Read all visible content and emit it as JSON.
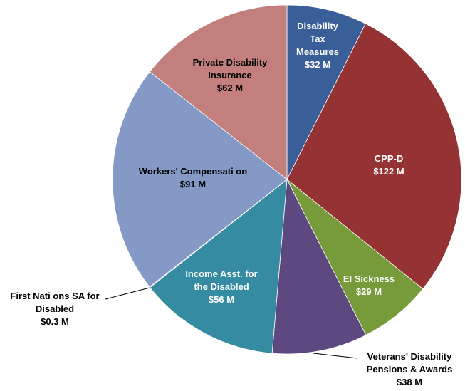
{
  "chart_data": {
    "type": "pie",
    "title": "",
    "start_angle_deg": 90,
    "direction": "clockwise",
    "slices": [
      {
        "lines": [
          "Disability",
          "Tax",
          "Measures",
          "$32 M"
        ],
        "value": 32,
        "color": "#3a5f98",
        "text_color": "#ffffff"
      },
      {
        "lines": [
          "CPP-D",
          "$122 M"
        ],
        "value": 122,
        "color": "#953334",
        "text_color": "#ffffff"
      },
      {
        "lines": [
          "EI Sickness",
          "$29 M"
        ],
        "value": 29,
        "color": "#779a3a",
        "text_color": "#ffffff"
      },
      {
        "lines": [
          "Veterans' Disability",
          "Pensions & Awards",
          "$38 M"
        ],
        "value": 38,
        "color": "#5d4880",
        "text_color": "#000000"
      },
      {
        "lines": [
          "Income Asst. for",
          "the Disabled",
          "$56 M"
        ],
        "value": 56,
        "color": "#358ca2",
        "text_color": "#ffffff"
      },
      {
        "lines": [
          "First Nati  ons SA for",
          "Disabled",
          "$0.3 M"
        ],
        "value": 0.3,
        "color": "#e07b2e",
        "text_color": "#000000"
      },
      {
        "lines": [
          "Workers' Compensati  on",
          "$91 M"
        ],
        "value": 91,
        "color": "#8599c6",
        "text_color": "#000000"
      },
      {
        "lines": [
          "Private Disability",
          "Insurance",
          "$62 M"
        ],
        "value": 62,
        "color": "#c37f7d",
        "text_color": "#000000"
      }
    ]
  }
}
